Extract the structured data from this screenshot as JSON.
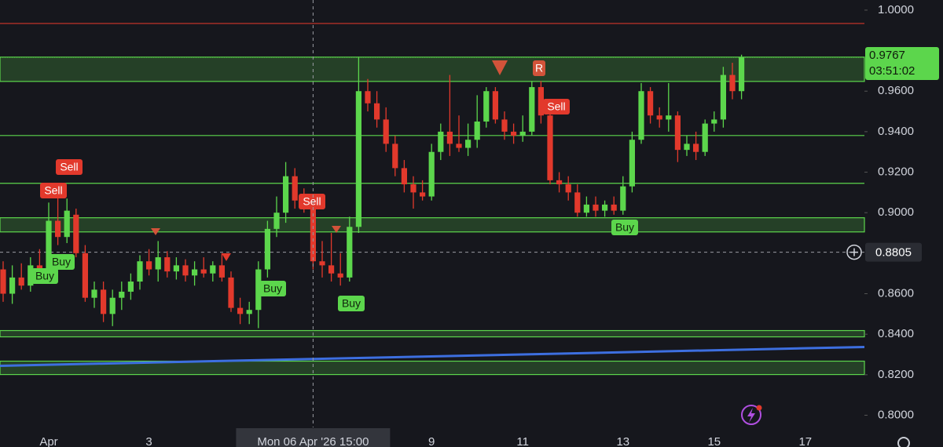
{
  "chart_data": {
    "type": "candlestick",
    "up_color": "#5cd64c",
    "down_color": "#e2392c",
    "ylim": [
      0.794,
      1.005
    ],
    "yticks": [
      {
        "value": 1.0,
        "label": "1.0000"
      },
      {
        "value": 0.96,
        "label": "0.9600"
      },
      {
        "value": 0.94,
        "label": "0.9400"
      },
      {
        "value": 0.92,
        "label": "0.9200"
      },
      {
        "value": 0.9,
        "label": "0.9000"
      },
      {
        "value": 0.86,
        "label": "0.8600"
      },
      {
        "value": 0.84,
        "label": "0.8400"
      },
      {
        "value": 0.82,
        "label": "0.8200"
      },
      {
        "value": 0.8,
        "label": "0.8000"
      }
    ],
    "categories": [
      null,
      null,
      null,
      null,
      null,
      "Apr",
      null,
      null,
      null,
      null,
      null,
      null,
      null,
      null,
      null,
      null,
      "3",
      null,
      null,
      null,
      null,
      null,
      null,
      null,
      null,
      null,
      null,
      null,
      null,
      null,
      null,
      null,
      null,
      null,
      "Mon 06 Apr '26  15:00",
      null,
      null,
      null,
      null,
      null,
      null,
      null,
      null,
      null,
      null,
      null,
      null,
      "9",
      null,
      null,
      null,
      null,
      null,
      null,
      null,
      null,
      null,
      "11",
      null,
      null,
      null,
      null,
      null,
      null,
      null,
      null,
      null,
      null,
      "13",
      null,
      null,
      null,
      null,
      null,
      null,
      null,
      null,
      null,
      "15",
      null,
      null,
      null,
      null,
      null,
      null,
      null,
      null,
      null,
      "17",
      null,
      null,
      null,
      null,
      null,
      null
    ],
    "open": [
      0.872,
      0.86,
      0.868,
      0.864,
      0.874,
      0.87,
      0.896,
      0.888,
      0.899,
      0.88,
      0.858,
      0.862,
      0.85,
      0.858,
      0.861,
      0.866,
      0.876,
      0.872,
      0.878,
      0.871,
      0.874,
      0.869,
      0.872,
      0.87,
      0.874,
      0.868,
      0.853,
      0.85,
      0.852,
      0.872,
      0.892,
      0.9,
      0.918,
      0.906,
      0.904,
      0.876,
      0.874,
      0.87,
      0.868,
      0.893,
      0.96,
      0.954,
      0.946,
      0.934,
      0.922,
      0.914,
      0.91,
      0.908,
      0.93,
      0.94,
      0.934,
      0.932,
      0.936,
      0.945,
      0.96,
      0.946,
      0.94,
      0.938,
      0.94,
      0.962,
      0.948,
      0.916,
      0.914,
      0.91,
      0.9,
      0.904,
      0.901,
      0.904,
      0.901,
      0.913,
      0.936,
      0.96,
      0.948,
      0.946,
      0.948,
      0.931,
      0.934,
      0.93,
      0.944,
      0.946,
      0.968,
      0.96,
      null,
      null,
      null,
      null,
      null,
      null,
      null,
      null,
      null,
      null,
      null,
      null,
      null
    ],
    "high": [
      0.876,
      0.874,
      0.875,
      0.878,
      0.882,
      0.905,
      0.91,
      0.907,
      0.902,
      0.884,
      0.866,
      0.866,
      0.862,
      0.866,
      0.87,
      0.879,
      0.882,
      0.886,
      0.881,
      0.878,
      0.877,
      0.876,
      0.878,
      0.876,
      0.88,
      0.871,
      0.858,
      0.856,
      0.876,
      0.896,
      0.908,
      0.925,
      0.922,
      0.912,
      0.908,
      0.886,
      0.89,
      0.88,
      0.898,
      0.977,
      0.966,
      0.96,
      0.952,
      0.938,
      0.926,
      0.918,
      0.916,
      0.934,
      0.944,
      0.968,
      0.948,
      0.944,
      0.958,
      0.962,
      0.962,
      0.95,
      0.944,
      0.948,
      0.965,
      0.965,
      0.95,
      0.92,
      0.918,
      0.914,
      0.908,
      0.908,
      0.906,
      0.908,
      0.918,
      0.94,
      0.964,
      0.962,
      0.952,
      0.964,
      0.95,
      0.938,
      0.94,
      0.946,
      0.95,
      0.972,
      0.974,
      0.978,
      null,
      null,
      null,
      null,
      null,
      null,
      null,
      null,
      null,
      null,
      null,
      null,
      null
    ],
    "low": [
      0.856,
      0.855,
      0.862,
      0.861,
      0.866,
      0.868,
      0.884,
      0.885,
      0.878,
      0.856,
      0.853,
      0.846,
      0.844,
      0.852,
      0.857,
      0.862,
      0.869,
      0.866,
      0.868,
      0.867,
      0.866,
      0.864,
      0.868,
      0.866,
      0.866,
      0.851,
      0.845,
      0.845,
      0.843,
      0.868,
      0.888,
      0.895,
      0.902,
      0.9,
      0.872,
      0.868,
      0.866,
      0.864,
      0.866,
      0.89,
      0.95,
      0.942,
      0.93,
      0.918,
      0.91,
      0.902,
      0.906,
      0.906,
      0.926,
      0.928,
      0.93,
      0.928,
      0.932,
      0.942,
      0.944,
      0.936,
      0.934,
      0.935,
      0.938,
      0.944,
      0.914,
      0.91,
      0.906,
      0.898,
      0.898,
      0.898,
      0.898,
      0.899,
      0.899,
      0.91,
      0.934,
      0.944,
      0.942,
      0.94,
      0.925,
      0.928,
      0.926,
      0.928,
      0.94,
      0.942,
      0.956,
      0.956,
      null,
      null,
      null,
      null,
      null,
      null,
      null,
      null,
      null,
      null,
      null,
      null,
      null
    ],
    "close": [
      0.86,
      0.868,
      0.864,
      0.874,
      0.87,
      0.896,
      0.888,
      0.901,
      0.88,
      0.858,
      0.862,
      0.85,
      0.858,
      0.861,
      0.866,
      0.876,
      0.872,
      0.878,
      0.871,
      0.874,
      0.869,
      0.872,
      0.87,
      0.874,
      0.868,
      0.853,
      0.85,
      0.852,
      0.872,
      0.892,
      0.9,
      0.918,
      0.906,
      0.904,
      0.876,
      0.874,
      0.87,
      0.868,
      0.893,
      0.96,
      0.954,
      0.946,
      0.934,
      0.922,
      0.914,
      0.91,
      0.908,
      0.93,
      0.94,
      0.934,
      0.932,
      0.936,
      0.945,
      0.96,
      0.946,
      0.94,
      0.938,
      0.94,
      0.962,
      0.948,
      0.916,
      0.914,
      0.91,
      0.9,
      0.904,
      0.901,
      0.904,
      0.901,
      0.913,
      0.936,
      0.96,
      0.948,
      0.946,
      0.948,
      0.931,
      0.934,
      0.93,
      0.944,
      0.946,
      0.968,
      0.96,
      0.9767,
      null,
      null,
      null,
      null,
      null,
      null,
      null,
      null,
      null,
      null,
      null,
      null,
      null
    ],
    "zones": [
      [
        0.9648,
        0.9768
      ],
      [
        0.8905,
        0.8975
      ],
      [
        0.8387,
        0.8418
      ],
      [
        0.8201,
        0.8267
      ]
    ],
    "zone_color": "#5cd64c",
    "levels": [
      0.9381,
      0.9145
    ],
    "resistance": 0.9934,
    "resistance_color": "#d2352b",
    "trendline": [
      0.8244,
      0.8337
    ],
    "trendline_color": "#3d6fe0",
    "crosshair": 0.8805,
    "last_price": 0.9767,
    "countdown": "03:51:02",
    "annotations": [
      "Sell",
      "Sell",
      "Buy",
      "Buy",
      "Sell",
      "Buy",
      "Buy",
      "R",
      "Sell",
      "Buy"
    ]
  }
}
